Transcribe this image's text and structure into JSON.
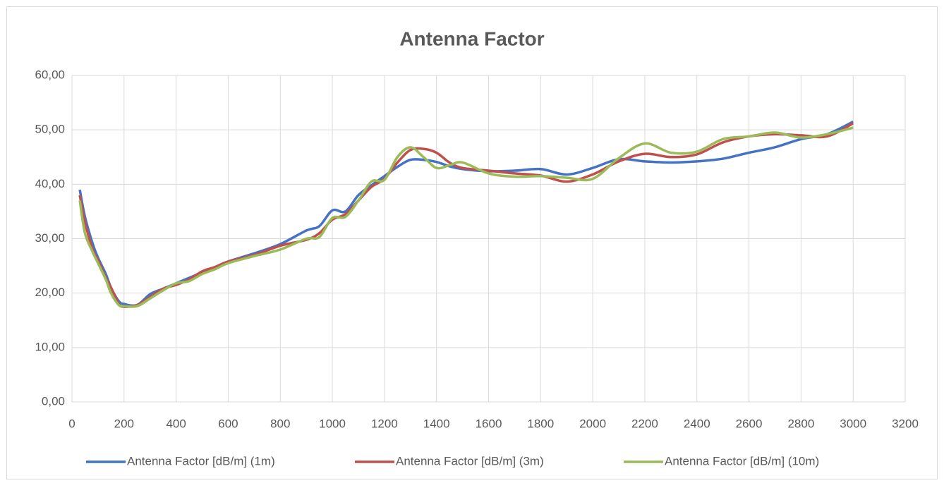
{
  "chart_data": {
    "type": "line",
    "title": "Antenna Factor",
    "x": [
      30,
      50,
      80,
      100,
      130,
      150,
      180,
      200,
      250,
      300,
      350,
      400,
      450,
      500,
      550,
      600,
      700,
      800,
      900,
      950,
      1000,
      1050,
      1100,
      1150,
      1200,
      1250,
      1300,
      1350,
      1400,
      1450,
      1500,
      1600,
      1700,
      1800,
      1900,
      2000,
      2100,
      2200,
      2300,
      2400,
      2500,
      2600,
      2700,
      2800,
      2900,
      3000
    ],
    "series": [
      {
        "name": "Antenna Factor [dB/m] (1m)",
        "color": "#4472c4",
        "values": [
          39.0,
          34,
          29,
          26.5,
          23.5,
          21,
          18.5,
          18,
          17.8,
          19.8,
          20.8,
          21.8,
          22.8,
          23.8,
          24.8,
          25.8,
          27.3,
          29,
          31.5,
          32.3,
          35.2,
          35,
          38,
          39.8,
          41.5,
          43.2,
          44.5,
          44.5,
          44.1,
          43.3,
          42.8,
          42.4,
          42.5,
          42.8,
          41.8,
          43,
          44.6,
          44.2,
          44,
          44.2,
          44.7,
          45.8,
          46.8,
          48.3,
          49.2,
          51.5
        ]
      },
      {
        "name": "Antenna Factor [dB/m] (3m)",
        "color": "#c0504d",
        "values": [
          38,
          33,
          28,
          26,
          22.8,
          21,
          18,
          17.5,
          17.8,
          19.3,
          20.8,
          21.5,
          22.5,
          24,
          24.8,
          25.8,
          27,
          28.7,
          29.8,
          31,
          33.5,
          34.5,
          37,
          39.5,
          41,
          44,
          46.3,
          46.5,
          45.8,
          44,
          43,
          42.5,
          42,
          41.6,
          40.5,
          41.8,
          44.2,
          45.6,
          45,
          45.5,
          47.7,
          48.8,
          49.2,
          49,
          48.8,
          51.2
        ]
      },
      {
        "name": "Antenna Factor [dB/m] (10m)",
        "color": "#9bbb59",
        "values": [
          37,
          31,
          27.5,
          25.5,
          22.5,
          20,
          17.8,
          17.6,
          17.6,
          19,
          20.5,
          21.8,
          22.2,
          23.5,
          24.4,
          25.5,
          26.8,
          28,
          30,
          30.3,
          33.8,
          34,
          37,
          40.5,
          40.8,
          45,
          46.8,
          45,
          43,
          43.5,
          44,
          42,
          41.4,
          41.5,
          41.2,
          41,
          44.8,
          47.5,
          45.8,
          46,
          48.3,
          48.8,
          49.5,
          48.6,
          49.2,
          50.4
        ]
      }
    ],
    "xlim": [
      0,
      3200
    ],
    "xticks": [
      0,
      200,
      400,
      600,
      800,
      1000,
      1200,
      1400,
      1600,
      1800,
      2000,
      2200,
      2400,
      2600,
      2800,
      3000,
      3200
    ],
    "ylim": [
      0,
      60
    ],
    "yticks": [
      {
        "value": 0,
        "label": "0,00"
      },
      {
        "value": 10,
        "label": "10,00"
      },
      {
        "value": 20,
        "label": "20,00"
      },
      {
        "value": 30,
        "label": "30,00"
      },
      {
        "value": 40,
        "label": "40,00"
      },
      {
        "value": 50,
        "label": "50,00"
      },
      {
        "value": 60,
        "label": "60,00"
      }
    ],
    "grid": true,
    "legend": "bottom"
  }
}
